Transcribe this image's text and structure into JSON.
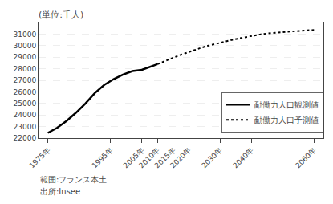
{
  "chart_data": {
    "type": "line",
    "title": "(単位:千人)",
    "annotations": [
      "範囲:フランス本土",
      "出所:Insee"
    ],
    "xlim": [
      1972,
      2063
    ],
    "xticks": [
      {
        "value": 1975,
        "label": "1975年"
      },
      {
        "value": 1995,
        "label": "1995年"
      },
      {
        "value": 2005,
        "label": "2005年"
      },
      {
        "value": 2010,
        "label": "2010年"
      },
      {
        "value": 2015,
        "label": "2015年"
      },
      {
        "value": 2020,
        "label": "2020年"
      },
      {
        "value": 2030,
        "label": "2030年"
      },
      {
        "value": 2040,
        "label": "2040年"
      },
      {
        "value": 2060,
        "label": "2060年"
      }
    ],
    "ylim": [
      22000,
      32000
    ],
    "yticks": [
      22000,
      23000,
      24000,
      25000,
      26000,
      27000,
      28000,
      29000,
      30000,
      31000
    ],
    "grid": true,
    "legend": "lower right",
    "series": [
      {
        "name": "勔働力人口観測値",
        "color": "#000000",
        "line_style": "solid",
        "x": [
          1975,
          1978,
          1981,
          1984,
          1987,
          1990,
          1993,
          1996,
          1999,
          2002,
          2005,
          2007,
          2009,
          2010
        ],
        "values": [
          22450,
          22900,
          23500,
          24200,
          25000,
          25900,
          26600,
          27100,
          27500,
          27800,
          27900,
          28100,
          28300,
          28400
        ]
      },
      {
        "name": "勔働力人口予測値",
        "color": "#000000",
        "line_style": "dotted",
        "x": [
          2010,
          2011,
          2012,
          2013,
          2014,
          2015,
          2016,
          2017,
          2018,
          2019,
          2020,
          2022,
          2024,
          2026,
          2028,
          2030,
          2032,
          2034,
          2036,
          2038,
          2040,
          2043,
          2046,
          2050,
          2054,
          2057,
          2060
        ],
        "values": [
          28400,
          28500,
          28620,
          28730,
          28840,
          28950,
          29060,
          29160,
          29260,
          29370,
          29470,
          29650,
          29820,
          29980,
          30120,
          30260,
          30390,
          30510,
          30620,
          30730,
          30840,
          30980,
          31080,
          31180,
          31270,
          31310,
          31360
        ]
      }
    ]
  }
}
